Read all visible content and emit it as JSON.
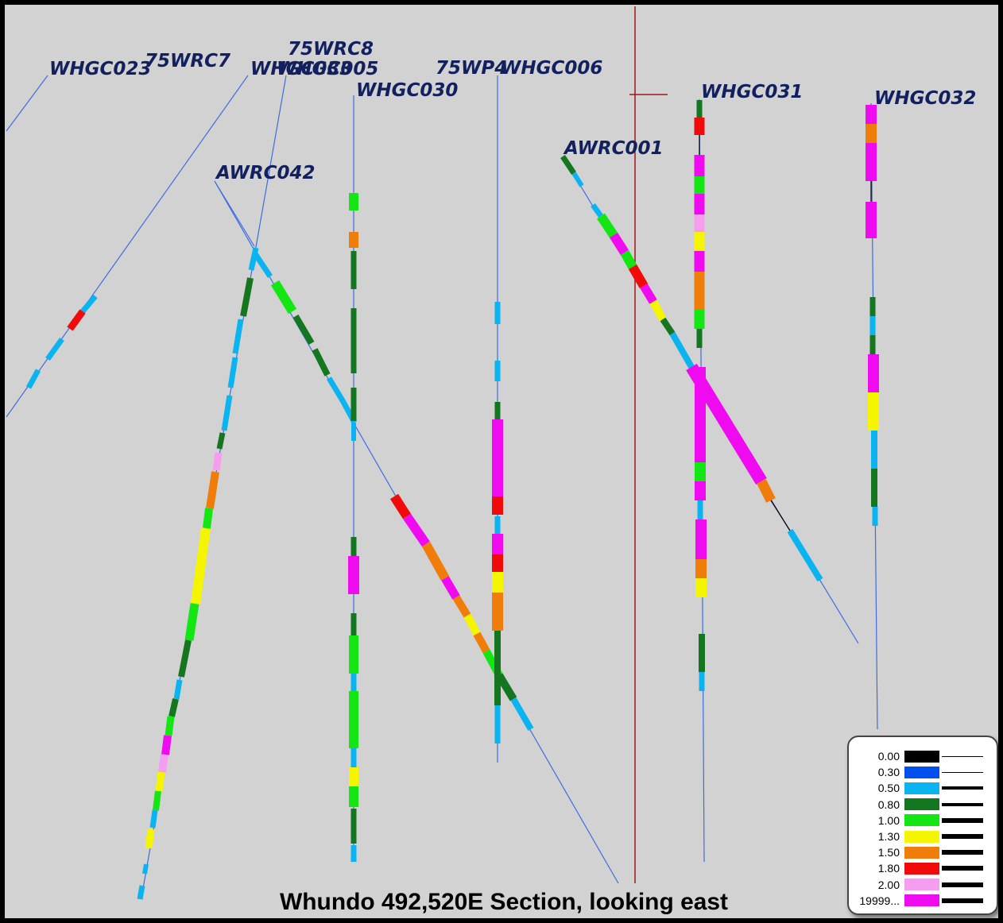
{
  "title": "Whundo 492,520E Section, looking east",
  "holes": [
    {
      "name": "WHGC023"
    },
    {
      "name": "75WRC7"
    },
    {
      "name": "75WRC8"
    },
    {
      "name": "WHGC033"
    },
    {
      "name": "WHGC005"
    },
    {
      "name": "WHGC030"
    },
    {
      "name": "75WP4"
    },
    {
      "name": "WHGC006"
    },
    {
      "name": "AWRC042"
    },
    {
      "name": "AWRC001"
    },
    {
      "name": "WHGC031"
    },
    {
      "name": "WHGC032"
    }
  ],
  "legend": [
    {
      "value": "0.00",
      "color": "#000000",
      "weight": 1
    },
    {
      "value": "0.30",
      "color": "#0050f0",
      "weight": 1
    },
    {
      "value": "0.50",
      "color": "#0ab4f0",
      "weight": 4
    },
    {
      "value": "0.80",
      "color": "#14761e",
      "weight": 4
    },
    {
      "value": "1.00",
      "color": "#14e614",
      "weight": 6
    },
    {
      "value": "1.30",
      "color": "#f5f500",
      "weight": 6
    },
    {
      "value": "1.50",
      "color": "#f07d0a",
      "weight": 6
    },
    {
      "value": "1.80",
      "color": "#f00a0a",
      "weight": 6
    },
    {
      "value": "2.00",
      "color": "#f59ef0",
      "weight": 6
    },
    {
      "value": "19999...",
      "color": "#f00af0",
      "weight": 6
    }
  ]
}
